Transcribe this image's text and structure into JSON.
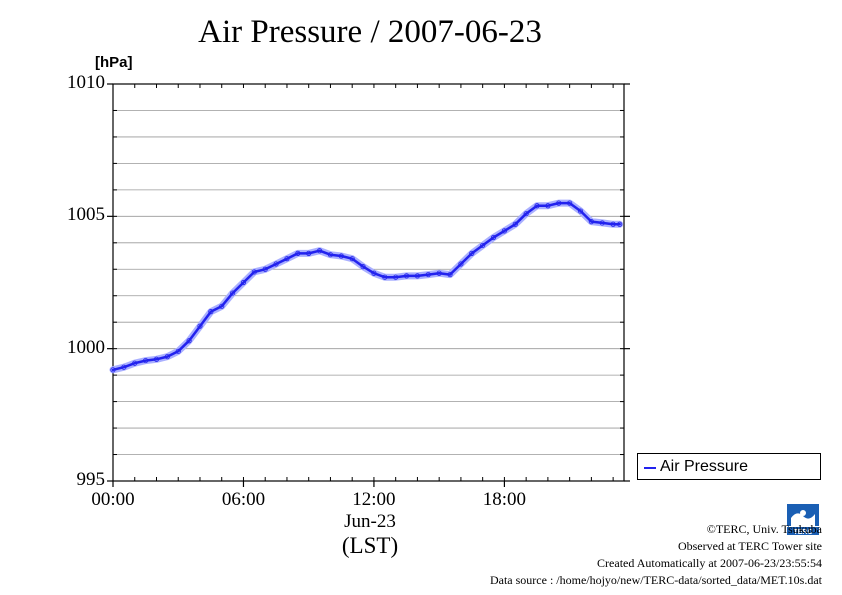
{
  "title": "Air Pressure / 2007-06-23",
  "unit": "[hPa]",
  "x_date_label": "Jun-23",
  "x_tz_label": "(LST)",
  "legend": {
    "label": "Air Pressure",
    "color": "#2222ee"
  },
  "credits": {
    "copyright": "©TERC, Univ. Tsukuba",
    "site": "Observed at TERC Tower site",
    "created": "Created Automatically at 2007-06-23/23:55:54",
    "source": "Data source : /home/hojyo/new/TERC-data/sorted_data/MET.10s.dat"
  },
  "logo_text": "TERC",
  "chart_data": {
    "type": "line",
    "title": "Air Pressure / 2007-06-23",
    "ylabel": "[hPa]",
    "xlabel": "(LST)",
    "ylim": [
      995,
      1010
    ],
    "xlim": [
      0,
      23.5
    ],
    "grid": true,
    "legend_position": "right",
    "y_ticks": [
      "995",
      "1000",
      "1005",
      "1010"
    ],
    "x_ticks": [
      {
        "hour": 0,
        "label": "00:00"
      },
      {
        "hour": 6,
        "label": "06:00"
      },
      {
        "hour": 12,
        "label": "12:00"
      },
      {
        "hour": 18,
        "label": "18:00"
      }
    ],
    "series": [
      {
        "name": "Air Pressure",
        "color": "#2222ee",
        "x": [
          0,
          0.5,
          1,
          1.5,
          2,
          2.5,
          3,
          3.5,
          4,
          4.5,
          5,
          5.5,
          6,
          6.5,
          7,
          7.5,
          8,
          8.5,
          9,
          9.5,
          10,
          10.5,
          11,
          11.5,
          12,
          12.5,
          13,
          13.5,
          14,
          14.5,
          15,
          15.5,
          16,
          16.5,
          17,
          17.5,
          18,
          18.5,
          19,
          19.5,
          20,
          20.5,
          21,
          21.5,
          22,
          22.5,
          23,
          23.3
        ],
        "y": [
          999.2,
          999.3,
          999.45,
          999.55,
          999.6,
          999.7,
          999.9,
          1000.3,
          1000.85,
          1001.4,
          1001.6,
          1002.1,
          1002.5,
          1002.9,
          1003.0,
          1003.2,
          1003.4,
          1003.6,
          1003.6,
          1003.7,
          1003.55,
          1003.5,
          1003.4,
          1003.1,
          1002.85,
          1002.7,
          1002.7,
          1002.75,
          1002.75,
          1002.8,
          1002.85,
          1002.8,
          1003.2,
          1003.6,
          1003.9,
          1004.2,
          1004.45,
          1004.7,
          1005.1,
          1005.4,
          1005.4,
          1005.5,
          1005.5,
          1005.2,
          1004.8,
          1004.75,
          1004.7,
          1004.7
        ]
      }
    ]
  }
}
